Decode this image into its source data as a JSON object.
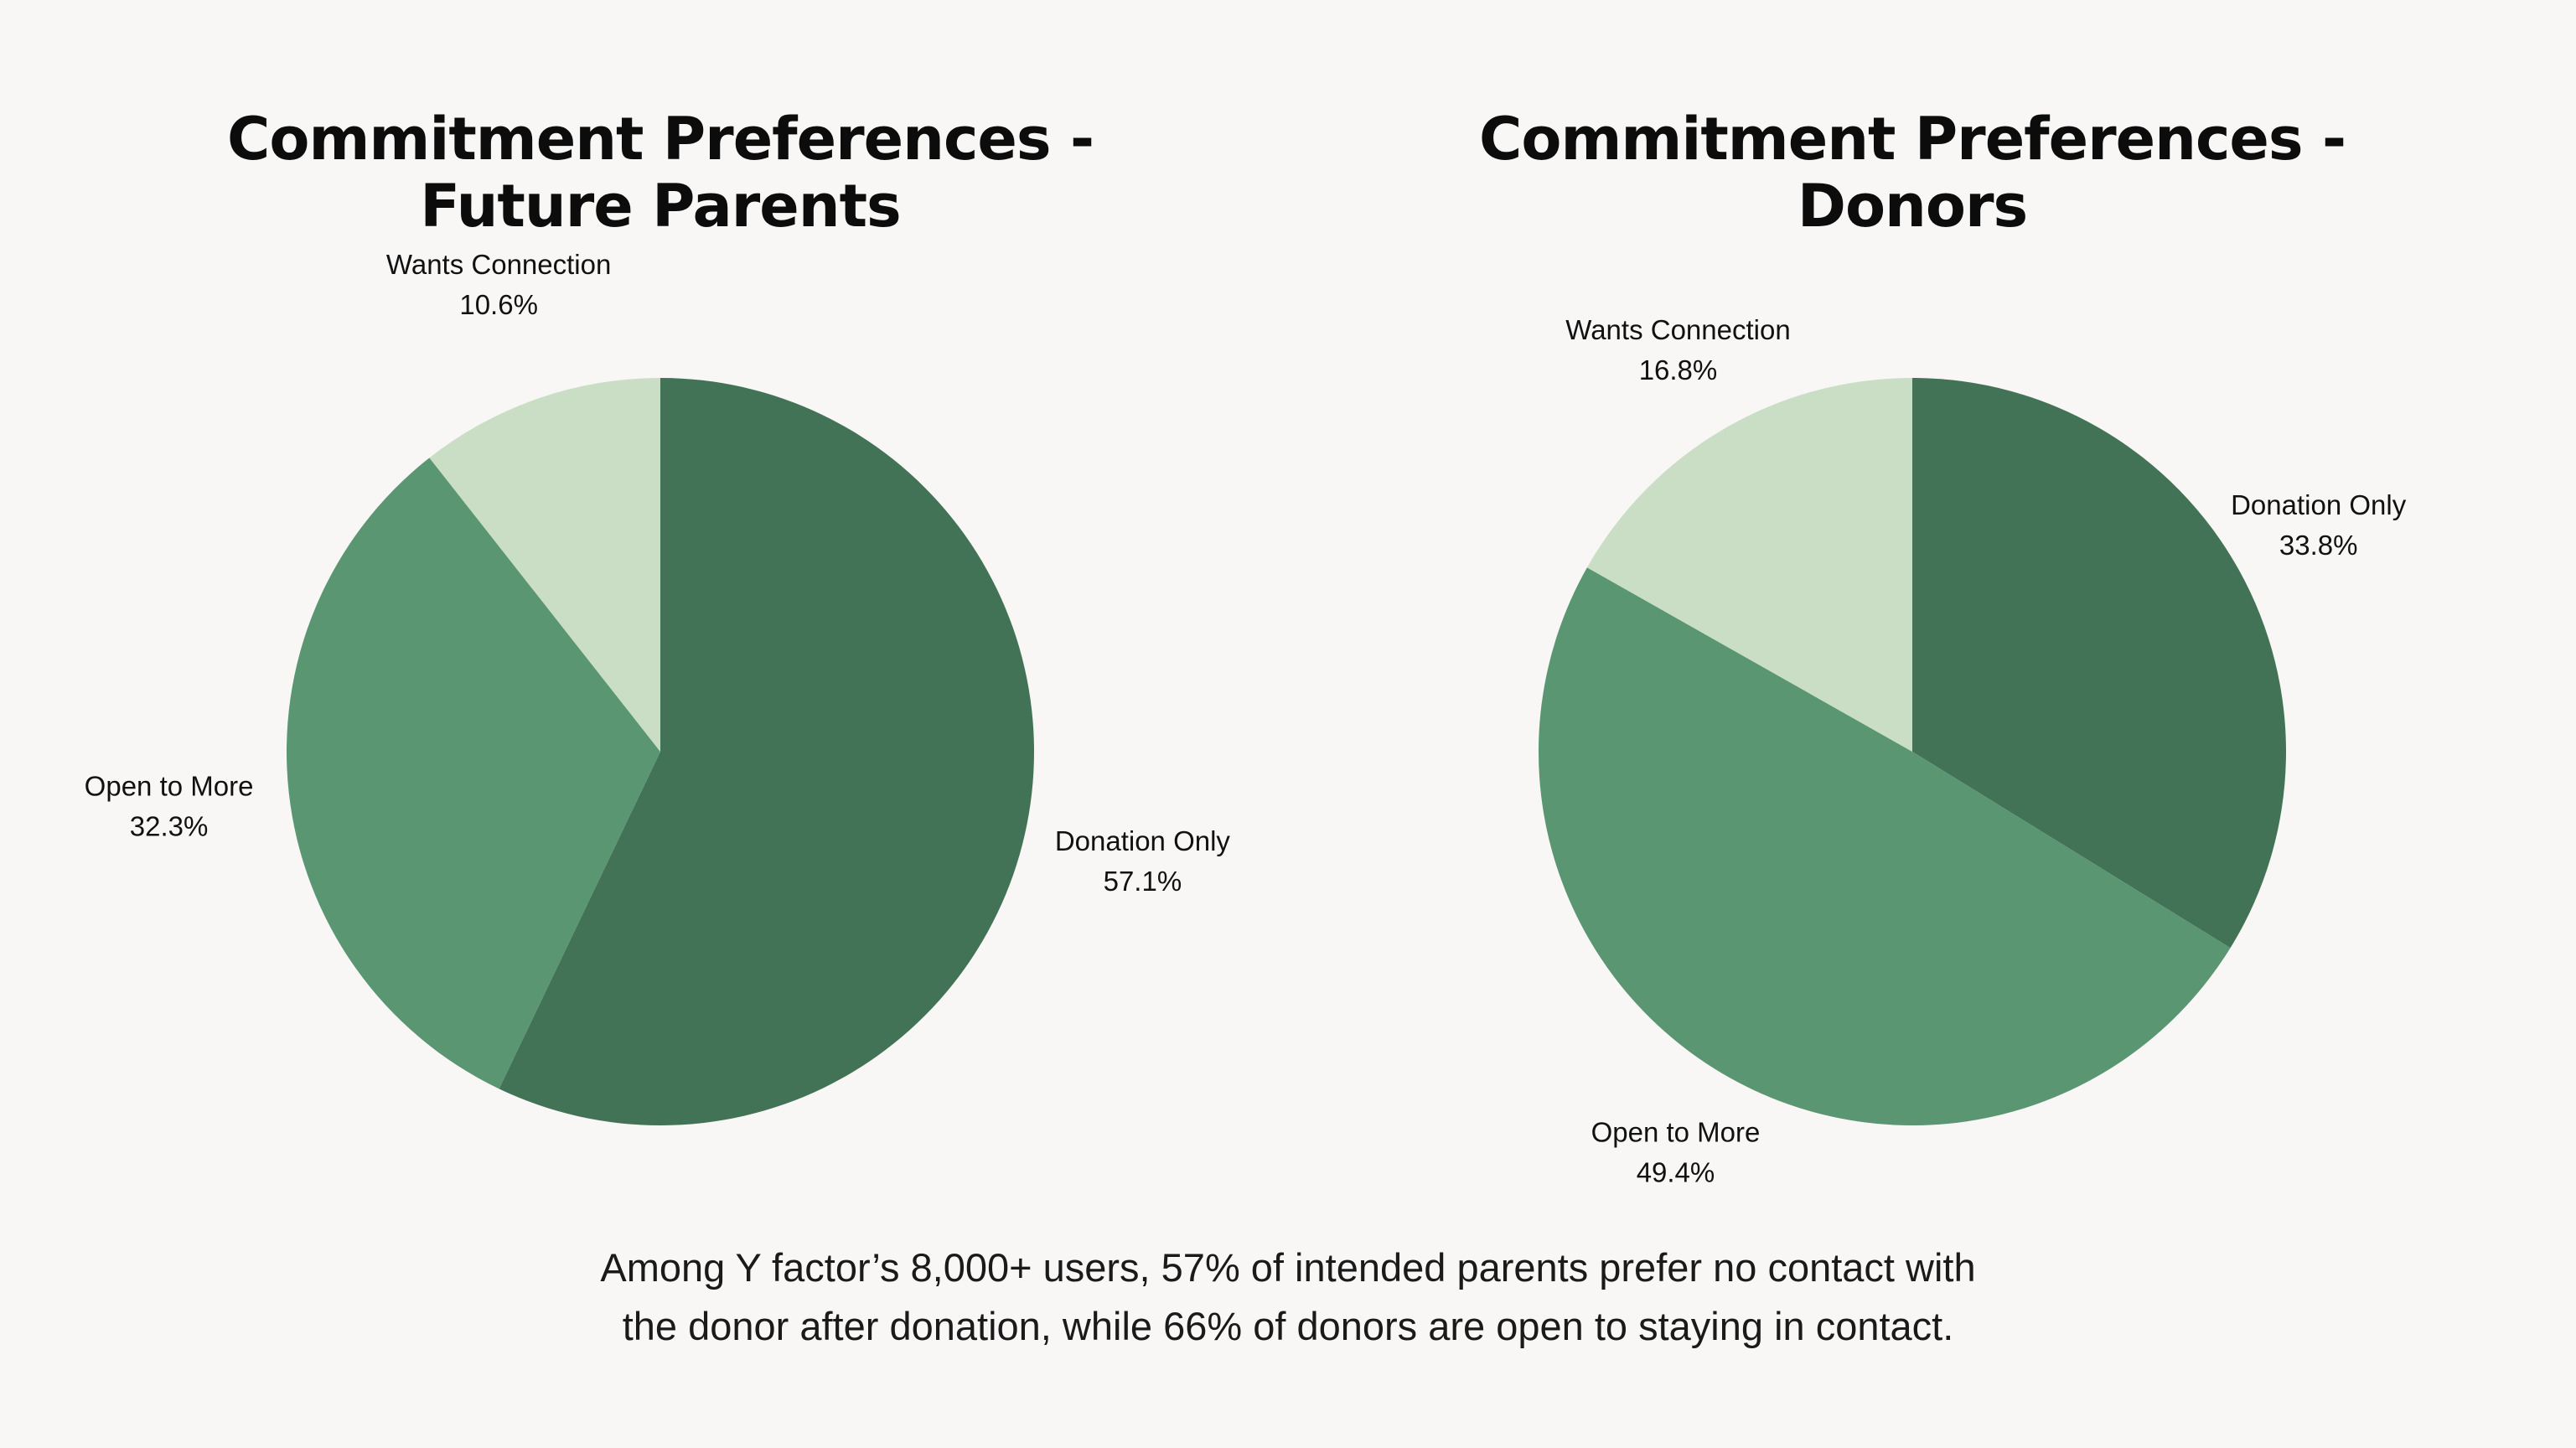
{
  "colors": {
    "background": "#f8f7f5",
    "donation_only": "#437356",
    "open_to_more": "#5b9672",
    "wants_connection": "#cadec5",
    "text": "#111111"
  },
  "chart_data": [
    {
      "type": "pie",
      "title_lines": [
        "Commitment Preferences -",
        "Future Parents"
      ],
      "start_angle_deg": 0,
      "direction": "clockwise",
      "slices": [
        {
          "label": "Donation Only",
          "value": 57.1,
          "value_label": "57.1%",
          "color_key": "donation_only"
        },
        {
          "label": "Open to More",
          "value": 32.3,
          "value_label": "32.3%",
          "color_key": "open_to_more"
        },
        {
          "label": "Wants Connection",
          "value": 10.6,
          "value_label": "10.6%",
          "color_key": "wants_connection"
        }
      ]
    },
    {
      "type": "pie",
      "title_lines": [
        "Commitment Preferences -",
        "Donors"
      ],
      "start_angle_deg": 0,
      "direction": "clockwise",
      "slices": [
        {
          "label": "Donation Only",
          "value": 33.8,
          "value_label": "33.8%",
          "color_key": "donation_only"
        },
        {
          "label": "Open to More",
          "value": 49.4,
          "value_label": "49.4%",
          "color_key": "open_to_more"
        },
        {
          "label": "Wants Connection",
          "value": 16.8,
          "value_label": "16.8%",
          "color_key": "wants_connection"
        }
      ]
    }
  ],
  "caption_lines": [
    "Among Y factor’s 8,000+ users, 57% of intended parents prefer no contact with",
    "the donor after donation, while 66% of donors are open to staying in contact."
  ]
}
